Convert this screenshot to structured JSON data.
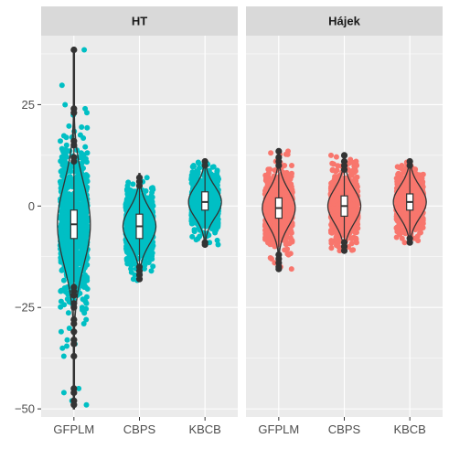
{
  "colors": {
    "HT": "#00BFC4",
    "Hajek": "#F8766D",
    "panel_bg": "#EBEBEB",
    "strip_bg": "#D9D9D9",
    "grid": "#FFFFFF",
    "stat": "#333333"
  },
  "chart_data": {
    "type": "violin+boxplot+jitter",
    "facets": [
      "HT",
      "Hájek"
    ],
    "categories": [
      "GFPLM",
      "CBPS",
      "KBCB"
    ],
    "ylim": [
      -52,
      42
    ],
    "yticks": [
      -50,
      -25,
      0,
      25
    ],
    "ytick_labels": [
      "−50",
      "−25",
      "0",
      "25"
    ],
    "grid": true,
    "legend": "none",
    "panels": [
      {
        "facet": "HT",
        "color_key": "HT",
        "groups": [
          {
            "category": "GFPLM",
            "min": -50,
            "q1": -8,
            "median": -4.5,
            "q3": -1,
            "max": 38.5,
            "spread": 9,
            "outliers": [
              38.5,
              24,
              23,
              16,
              15,
              12,
              11,
              -20,
              -21,
              -22,
              -24,
              -25,
              -28,
              -29,
              -31,
              -33,
              -34,
              -37,
              -45,
              -46,
              -48,
              -49
            ]
          },
          {
            "category": "CBPS",
            "min": -18.5,
            "q1": -8,
            "median": -5,
            "q3": -2,
            "max": 8,
            "spread": 4,
            "outliers": [
              7,
              6,
              5,
              -15,
              -16,
              -17,
              -18
            ]
          },
          {
            "category": "KBCB",
            "min": -9.5,
            "q1": -1,
            "median": 1,
            "q3": 3.5,
            "max": 11,
            "spread": 3.5,
            "outliers": [
              11,
              10,
              -9,
              -9.5
            ]
          }
        ]
      },
      {
        "facet": "Hájek",
        "color_key": "Hajek",
        "groups": [
          {
            "category": "GFPLM",
            "min": -15.5,
            "q1": -3,
            "median": -0.5,
            "q3": 2,
            "max": 13.5,
            "spread": 4,
            "outliers": [
              13.5,
              12,
              11,
              10,
              -12,
              -13,
              -14,
              -15,
              -15.5
            ]
          },
          {
            "category": "CBPS",
            "min": -11,
            "q1": -2.5,
            "median": 0,
            "q3": 2.5,
            "max": 12.5,
            "spread": 3.8,
            "outliers": [
              12.5,
              11,
              10,
              9,
              -9,
              -10,
              -11
            ]
          },
          {
            "category": "KBCB",
            "min": -9,
            "q1": -1,
            "median": 1,
            "q3": 3,
            "max": 11,
            "spread": 3.5,
            "outliers": [
              11,
              10,
              -8,
              -9
            ]
          }
        ]
      }
    ]
  }
}
